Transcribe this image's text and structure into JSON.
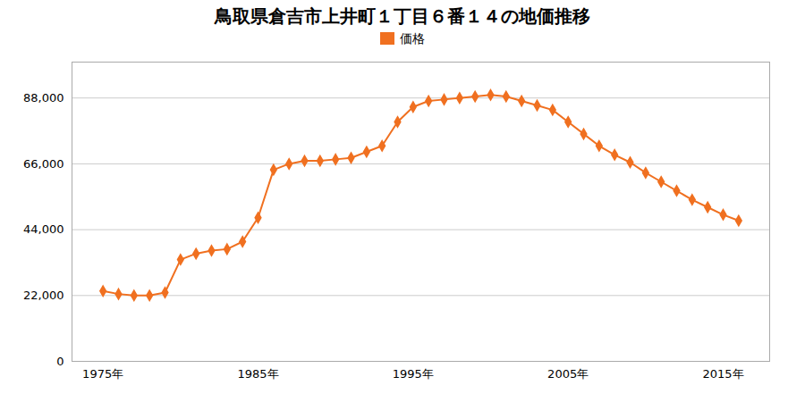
{
  "chart_data": {
    "type": "line",
    "title": "鳥取県倉吉市上井町１丁目６番１４の地価推移",
    "x": [
      1975,
      1976,
      1977,
      1978,
      1979,
      1980,
      1981,
      1982,
      1983,
      1984,
      1985,
      1986,
      1987,
      1988,
      1989,
      1990,
      1991,
      1992,
      1993,
      1994,
      1995,
      1996,
      1997,
      1998,
      1999,
      2000,
      2001,
      2002,
      2003,
      2004,
      2005,
      2006,
      2007,
      2008,
      2009,
      2010,
      2011,
      2012,
      2013,
      2014,
      2015,
      2016
    ],
    "series": [
      {
        "name": "価格",
        "color": "#f07020",
        "marker": "diamond",
        "values": [
          23500,
          22500,
          22000,
          22000,
          23000,
          34000,
          36000,
          37000,
          37500,
          40000,
          48000,
          64000,
          66000,
          67000,
          67000,
          67500,
          68000,
          70000,
          72000,
          80000,
          85000,
          87000,
          87500,
          88000,
          88500,
          89000,
          88500,
          87000,
          85500,
          84000,
          80000,
          76000,
          72000,
          69000,
          66500,
          63000,
          60000,
          57000,
          54000,
          51500,
          49000,
          47000
        ]
      }
    ],
    "xlim": [
      1973,
      2018
    ],
    "xticks": [
      {
        "value": 1975,
        "label": "1975年"
      },
      {
        "value": 1985,
        "label": "1985年"
      },
      {
        "value": 1995,
        "label": "1995年"
      },
      {
        "value": 2005,
        "label": "2005年"
      },
      {
        "value": 2015,
        "label": "2015年"
      }
    ],
    "ylim": [
      0,
      100000
    ],
    "yticks": [
      0,
      {
        "value": 22000,
        "label": "22,000"
      },
      {
        "value": 44000,
        "label": "44,000"
      },
      {
        "value": 66000,
        "label": "66,000"
      },
      {
        "value": 88000,
        "label": "88,000"
      }
    ],
    "grid": "y",
    "legend": "top"
  }
}
